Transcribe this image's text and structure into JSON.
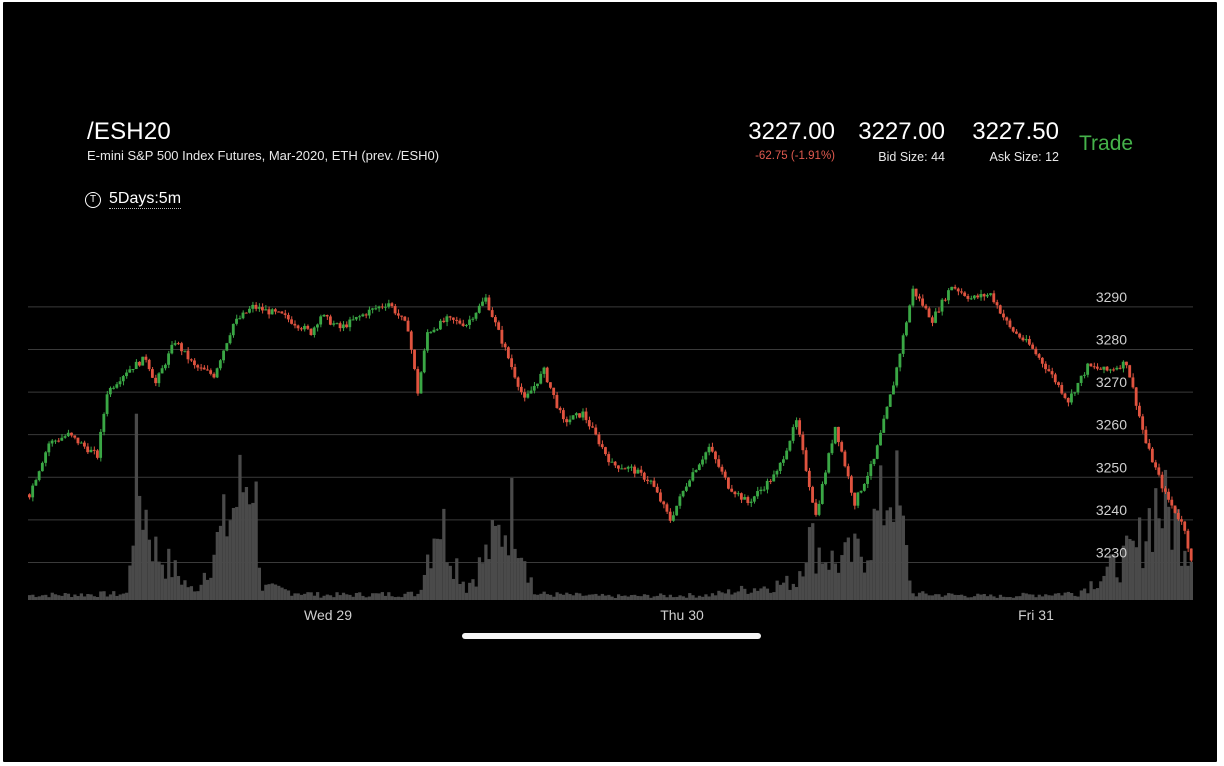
{
  "header": {
    "symbol": "/ESH20",
    "description": "E-mini S&P 500 Index Futures, Mar-2020, ETH (prev. /ESH0)",
    "period_icon": "T",
    "period": "5Days:5m",
    "trade_label": "Trade"
  },
  "quote": {
    "last": "3227.00",
    "change": "-62.75 (-1.91%)",
    "bid": "3227.00",
    "bid_size_label": "Bid Size: 44",
    "ask": "3227.50",
    "ask_size_label": "Ask Size: 12"
  },
  "colors": {
    "up": "#3aa745",
    "down": "#e0533f",
    "volume": "#4a4a4a",
    "grid": "#3a3a3a",
    "trade": "#45b24a"
  },
  "chart_data": {
    "type": "candlestick",
    "x_ticks": [
      "Wed 29",
      "Thu 30",
      "Fri 31"
    ],
    "y_ticks": [
      "3230",
      "3240",
      "3250",
      "3260",
      "3270",
      "3280",
      "3290"
    ],
    "ylim": [
      3220,
      3296
    ],
    "grid": true,
    "price_path": [
      [
        0,
        3246
      ],
      [
        2,
        3258
      ],
      [
        4,
        3260
      ],
      [
        7,
        3255
      ],
      [
        8,
        3270
      ],
      [
        10,
        3275
      ],
      [
        12,
        3278
      ],
      [
        13,
        3272
      ],
      [
        15,
        3282
      ],
      [
        17,
        3276
      ],
      [
        19,
        3274
      ],
      [
        21,
        3286
      ],
      [
        23,
        3290
      ],
      [
        26,
        3288
      ],
      [
        29,
        3284
      ],
      [
        30,
        3288
      ],
      [
        32,
        3285
      ],
      [
        35,
        3289
      ],
      [
        37,
        3291
      ],
      [
        39,
        3285
      ],
      [
        40,
        3270
      ],
      [
        41,
        3284
      ],
      [
        43,
        3287
      ],
      [
        45,
        3286
      ],
      [
        47,
        3292
      ],
      [
        49,
        3280
      ],
      [
        51,
        3268
      ],
      [
        53,
        3275
      ],
      [
        55,
        3263
      ],
      [
        57,
        3265
      ],
      [
        60,
        3253
      ],
      [
        62,
        3252
      ],
      [
        64,
        3249
      ],
      [
        66,
        3240
      ],
      [
        68,
        3250
      ],
      [
        70,
        3257
      ],
      [
        72,
        3248
      ],
      [
        74,
        3244
      ],
      [
        77,
        3251
      ],
      [
        79,
        3263
      ],
      [
        81,
        3241
      ],
      [
        83,
        3262
      ],
      [
        85,
        3244
      ],
      [
        87,
        3254
      ],
      [
        89,
        3272
      ],
      [
        91,
        3294
      ],
      [
        93,
        3287
      ],
      [
        95,
        3295
      ],
      [
        97,
        3292
      ],
      [
        99,
        3293
      ],
      [
        101,
        3285
      ],
      [
        103,
        3281
      ],
      [
        105,
        3275
      ],
      [
        107,
        3268
      ],
      [
        109,
        3276
      ],
      [
        111,
        3275
      ],
      [
        113,
        3277
      ],
      [
        115,
        3258
      ],
      [
        117,
        3246
      ],
      [
        119,
        3238
      ],
      [
        120,
        3226
      ]
    ],
    "volume_path": [
      [
        0,
        8
      ],
      [
        10,
        10
      ],
      [
        11,
        200
      ],
      [
        13,
        80
      ],
      [
        17,
        12
      ],
      [
        23,
        220
      ],
      [
        24,
        20
      ],
      [
        30,
        8
      ],
      [
        40,
        10
      ],
      [
        42,
        140
      ],
      [
        45,
        20
      ],
      [
        50,
        150
      ],
      [
        52,
        10
      ],
      [
        60,
        6
      ],
      [
        70,
        8
      ],
      [
        79,
        30
      ],
      [
        80,
        100
      ],
      [
        83,
        60
      ],
      [
        86,
        80
      ],
      [
        89,
        200
      ],
      [
        91,
        10
      ],
      [
        100,
        6
      ],
      [
        108,
        12
      ],
      [
        114,
        80
      ],
      [
        116,
        160
      ],
      [
        119,
        110
      ],
      [
        120,
        60
      ]
    ]
  }
}
